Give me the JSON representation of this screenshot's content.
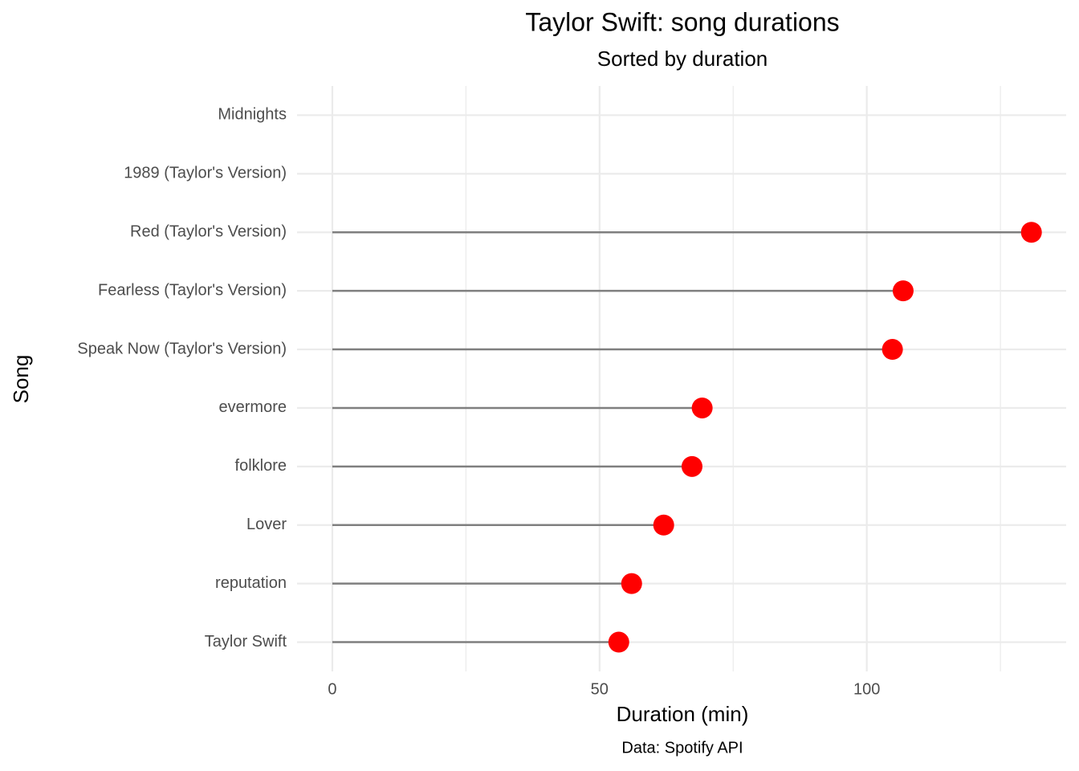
{
  "chart_data": {
    "type": "lollipop",
    "title": "Taylor Swift: song durations",
    "subtitle": "Sorted by duration",
    "x_label": "Duration (min)",
    "y_label": "Song",
    "caption": "Data: Spotify API",
    "categories": [
      "Midnights",
      "1989 (Taylor's Version)",
      "Red (Taylor's Version)",
      "Fearless (Taylor's Version)",
      "Speak Now (Taylor's Version)",
      "evermore",
      "folklore",
      "Lover",
      "reputation",
      "Taylor Swift"
    ],
    "values": [
      null,
      null,
      130.8,
      106.8,
      104.8,
      69.2,
      67.3,
      62.0,
      56.0,
      53.6
    ],
    "color": "#ff0000",
    "stem_color": "#7f7f7f",
    "xlim": [
      -6.6,
      137.3
    ],
    "xticks": [
      0,
      50,
      100
    ],
    "x_minor_grid": [
      25,
      75,
      125
    ],
    "grid": true
  }
}
